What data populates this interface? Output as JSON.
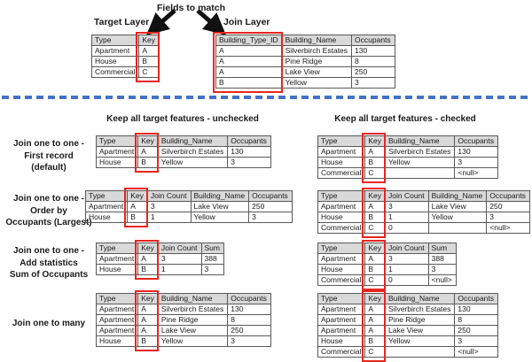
{
  "colors": {
    "accent_red": "#e8251f",
    "divider_blue": "#4472c4",
    "table_header_gray": "#d9d9d9"
  },
  "top": {
    "fields_to_match_label": "Fields to match",
    "target_layer_label": "Target Layer",
    "join_layer_label": "Join Layer",
    "target_table": {
      "headers": [
        "Type",
        "Key"
      ],
      "key_col": 1,
      "rows": [
        [
          "Apartment",
          "A"
        ],
        [
          "House",
          "B"
        ],
        [
          "Commercial",
          "C"
        ]
      ]
    },
    "join_table": {
      "headers": [
        "Building_Type_ID",
        "Building_Name",
        "Occupants"
      ],
      "key_col": 0,
      "rows": [
        [
          "A",
          "Silverbirch Estates",
          "130"
        ],
        [
          "A",
          "Pine Ridge",
          "8"
        ],
        [
          "A",
          "Lake View",
          "250"
        ],
        [
          "B",
          "Yellow",
          "3"
        ]
      ]
    }
  },
  "sections": {
    "unchecked_header": "Keep all target features - unchecked",
    "checked_header": "Keep all target features - checked"
  },
  "result_rows": [
    {
      "label_lines": [
        "Join one to one -",
        "First record",
        "(default)"
      ],
      "unchecked": {
        "headers": [
          "Type",
          "Key",
          "Building_Name",
          "Occupants"
        ],
        "key_col": 1,
        "rows": [
          [
            "Apartment",
            "A",
            "Silverbirch Estates",
            "130"
          ],
          [
            "House",
            "B",
            "Yellow",
            "3"
          ]
        ]
      },
      "checked": {
        "headers": [
          "Type",
          "Key",
          "Building_Name",
          "Occupants"
        ],
        "key_col": 1,
        "rows": [
          [
            "Apartment",
            "A",
            "Silverbirch Estates",
            "130"
          ],
          [
            "House",
            "B",
            "Yellow",
            "3"
          ],
          [
            "Commercial",
            "C",
            "",
            "<null>"
          ]
        ]
      }
    },
    {
      "label_lines": [
        "Join one to one -",
        "Order by",
        "Occupants (Largest)"
      ],
      "unchecked": {
        "headers": [
          "Type",
          "Key",
          "Join Count",
          "Building_Name",
          "Occupants"
        ],
        "key_col": 1,
        "rows": [
          [
            "Apartment",
            "A",
            "3",
            "Lake View",
            "250"
          ],
          [
            "House",
            "B",
            "1",
            "Yellow",
            "3"
          ]
        ]
      },
      "checked": {
        "headers": [
          "Type",
          "Key",
          "Join Count",
          "Building_Name",
          "Occupants"
        ],
        "key_col": 1,
        "rows": [
          [
            "Apartment",
            "A",
            "3",
            "Lake View",
            "250"
          ],
          [
            "House",
            "B",
            "1",
            "Yellow",
            "3"
          ],
          [
            "Commercial",
            "C",
            "0",
            "",
            "<null>"
          ]
        ]
      }
    },
    {
      "label_lines": [
        "Join one to one -",
        "Add statistics",
        "Sum of Occupants"
      ],
      "unchecked": {
        "headers": [
          "Type",
          "Key",
          "Join Count",
          "Sum"
        ],
        "key_col": 1,
        "rows": [
          [
            "Apartment",
            "A",
            "3",
            "388"
          ],
          [
            "House",
            "B",
            "1",
            "3"
          ]
        ]
      },
      "checked": {
        "headers": [
          "Type",
          "Key",
          "Join Count",
          "Sum"
        ],
        "key_col": 1,
        "rows": [
          [
            "Apartment",
            "A",
            "3",
            "388"
          ],
          [
            "House",
            "B",
            "1",
            "3"
          ],
          [
            "Commercial",
            "C",
            "0",
            "<null>"
          ]
        ]
      }
    },
    {
      "label_lines": [
        "Join one to many"
      ],
      "unchecked": {
        "headers": [
          "Type",
          "Key",
          "Building_Name",
          "Occupants"
        ],
        "key_col": 1,
        "rows": [
          [
            "Apartment",
            "A",
            "Silverbirch Estates",
            "130"
          ],
          [
            "Apartment",
            "A",
            "Pine Ridge",
            "8"
          ],
          [
            "Apartment",
            "A",
            "Lake View",
            "250"
          ],
          [
            "House",
            "B",
            "Yellow",
            "3"
          ]
        ]
      },
      "checked": {
        "headers": [
          "Type",
          "Key",
          "Building_Name",
          "Occupants"
        ],
        "key_col": 1,
        "rows": [
          [
            "Apartment",
            "A",
            "Silverbirch Estates",
            "130"
          ],
          [
            "Apartment",
            "A",
            "Pine Ridge",
            "8"
          ],
          [
            "Apartment",
            "A",
            "Lake View",
            "250"
          ],
          [
            "House",
            "B",
            "Yellow",
            "3"
          ],
          [
            "Commercial",
            "C",
            "",
            "<null>"
          ]
        ]
      }
    }
  ]
}
